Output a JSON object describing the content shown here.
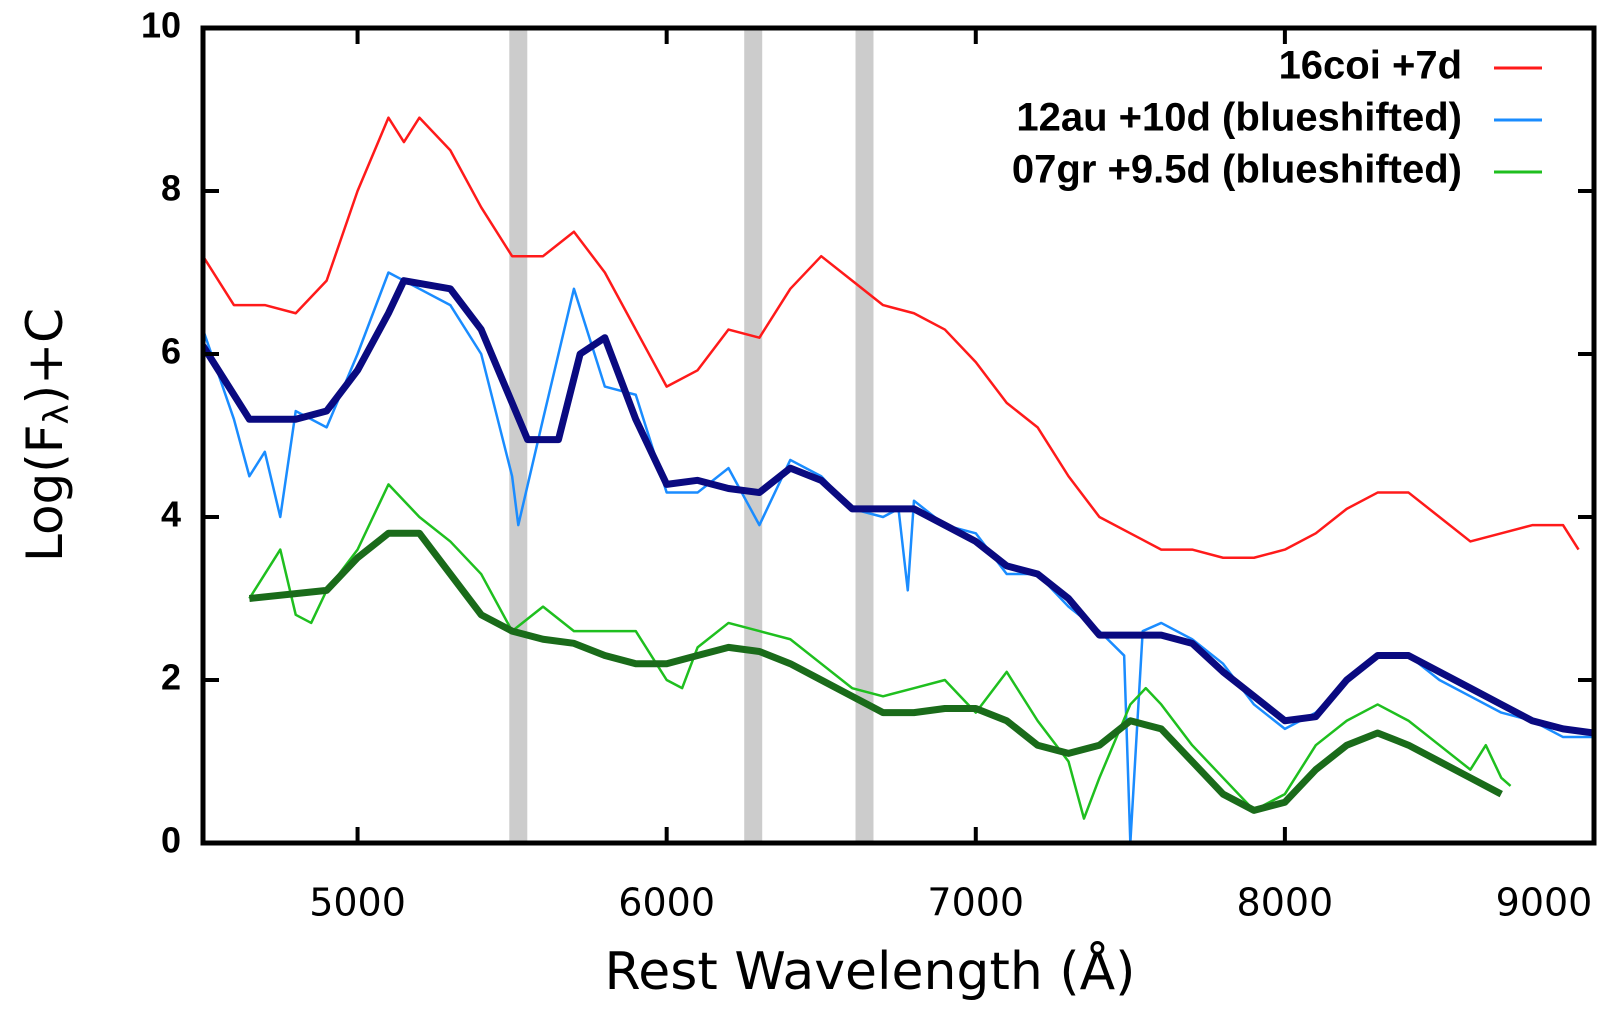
{
  "chart_data": {
    "type": "line",
    "xlabel": "Rest Wavelength (Å)",
    "ylabel": {
      "before": "Log(F",
      "sub": "λ",
      "after": ")+C"
    },
    "xlim": [
      4500,
      9000
    ],
    "xticks": [
      5000,
      6000,
      7000,
      8000,
      9000
    ],
    "ylim": [
      0,
      10
    ],
    "yticks": [
      0,
      2,
      4,
      6,
      8,
      10
    ],
    "legend": "upper right",
    "band_color": "#cccccc",
    "vertical_bands": [
      5520,
      6280,
      6640
    ],
    "series": [
      {
        "name": "16coi +7d",
        "color": "#ff1a1a",
        "width": 2.5,
        "x": [
          4500,
          4600,
          4700,
          4800,
          4900,
          5000,
          5100,
          5150,
          5200,
          5300,
          5400,
          5500,
          5600,
          5700,
          5800,
          5900,
          6000,
          6100,
          6200,
          6300,
          6400,
          6500,
          6600,
          6700,
          6800,
          6900,
          7000,
          7100,
          7200,
          7300,
          7400,
          7500,
          7600,
          7700,
          7800,
          7900,
          8000,
          8100,
          8200,
          8300,
          8400,
          8500,
          8600,
          8700,
          8800,
          8900,
          8950
        ],
        "values": [
          7.2,
          6.6,
          6.6,
          6.5,
          6.9,
          8.0,
          8.9,
          8.6,
          8.9,
          8.5,
          7.8,
          7.2,
          7.2,
          7.5,
          7.0,
          6.3,
          5.6,
          5.8,
          6.3,
          6.2,
          6.8,
          7.2,
          6.9,
          6.6,
          6.5,
          6.3,
          5.9,
          5.4,
          5.1,
          4.5,
          4.0,
          3.8,
          3.6,
          3.6,
          3.5,
          3.5,
          3.6,
          3.8,
          4.1,
          4.3,
          4.3,
          4.0,
          3.7,
          3.8,
          3.9,
          3.9,
          3.6
        ]
      },
      {
        "name": "12au +10d (blueshifted)",
        "color": "#1a8cff",
        "width": 2.5,
        "x": [
          4500,
          4600,
          4650,
          4700,
          4750,
          4800,
          4900,
          5000,
          5100,
          5200,
          5300,
          5400,
          5500,
          5520,
          5600,
          5700,
          5800,
          5900,
          6000,
          6100,
          6200,
          6300,
          6400,
          6500,
          6600,
          6700,
          6750,
          6780,
          6800,
          6900,
          7000,
          7100,
          7200,
          7300,
          7400,
          7480,
          7500,
          7540,
          7600,
          7700,
          7800,
          7900,
          8000,
          8100,
          8200,
          8300,
          8400,
          8500,
          8600,
          8700,
          8800,
          8900,
          9000
        ],
        "values": [
          6.3,
          5.2,
          4.5,
          4.8,
          4.0,
          5.3,
          5.1,
          6.0,
          7.0,
          6.8,
          6.6,
          6.0,
          4.5,
          3.9,
          5.2,
          6.8,
          5.6,
          5.5,
          4.3,
          4.3,
          4.6,
          3.9,
          4.7,
          4.5,
          4.1,
          4.0,
          4.1,
          3.1,
          4.2,
          3.9,
          3.8,
          3.3,
          3.3,
          2.9,
          2.6,
          2.3,
          0.0,
          2.6,
          2.7,
          2.5,
          2.2,
          1.7,
          1.4,
          1.6,
          2.0,
          2.3,
          2.3,
          2.0,
          1.8,
          1.6,
          1.5,
          1.3,
          1.3
        ]
      },
      {
        "name": "07gr +9.5d (blueshifted)",
        "color": "#1fbf1f",
        "width": 2.5,
        "x": [
          4650,
          4700,
          4750,
          4800,
          4850,
          4900,
          5000,
          5100,
          5200,
          5300,
          5400,
          5500,
          5600,
          5700,
          5800,
          5900,
          6000,
          6050,
          6100,
          6200,
          6300,
          6400,
          6500,
          6600,
          6700,
          6800,
          6900,
          7000,
          7100,
          7200,
          7300,
          7350,
          7400,
          7500,
          7550,
          7600,
          7700,
          7800,
          7900,
          8000,
          8100,
          8200,
          8300,
          8400,
          8500,
          8600,
          8650,
          8700,
          8730
        ],
        "values": [
          3.0,
          3.3,
          3.6,
          2.8,
          2.7,
          3.1,
          3.6,
          4.4,
          4.0,
          3.7,
          3.3,
          2.6,
          2.9,
          2.6,
          2.6,
          2.6,
          2.0,
          1.9,
          2.4,
          2.7,
          2.6,
          2.5,
          2.2,
          1.9,
          1.8,
          1.9,
          2.0,
          1.6,
          2.1,
          1.5,
          1.0,
          0.3,
          0.8,
          1.7,
          1.9,
          1.7,
          1.2,
          0.8,
          0.4,
          0.6,
          1.2,
          1.5,
          1.7,
          1.5,
          1.2,
          0.9,
          1.2,
          0.8,
          0.7
        ]
      },
      {
        "color": "#0a0a80",
        "width": 7,
        "x": [
          4500,
          4650,
          4800,
          4900,
          5000,
          5100,
          5150,
          5300,
          5400,
          5550,
          5650,
          5720,
          5800,
          5900,
          6000,
          6100,
          6200,
          6300,
          6400,
          6500,
          6600,
          6700,
          6800,
          6900,
          7000,
          7100,
          7200,
          7300,
          7400,
          7500,
          7600,
          7700,
          7800,
          7900,
          8000,
          8100,
          8200,
          8300,
          8400,
          8500,
          8600,
          8700,
          8800,
          8900,
          9000
        ],
        "values": [
          6.1,
          5.2,
          5.2,
          5.3,
          5.8,
          6.5,
          6.9,
          6.8,
          6.3,
          4.95,
          4.95,
          6.0,
          6.2,
          5.2,
          4.4,
          4.45,
          4.35,
          4.3,
          4.6,
          4.45,
          4.1,
          4.1,
          4.1,
          3.9,
          3.7,
          3.4,
          3.3,
          3.0,
          2.55,
          2.55,
          2.55,
          2.45,
          2.1,
          1.8,
          1.5,
          1.55,
          2.0,
          2.3,
          2.3,
          2.1,
          1.9,
          1.7,
          1.5,
          1.4,
          1.35
        ]
      },
      {
        "color": "#1a6b1a",
        "width": 7,
        "x": [
          4650,
          4900,
          5000,
          5100,
          5200,
          5300,
          5400,
          5500,
          5600,
          5700,
          5800,
          5900,
          6000,
          6100,
          6200,
          6300,
          6400,
          6500,
          6600,
          6700,
          6800,
          6900,
          7000,
          7100,
          7200,
          7300,
          7400,
          7500,
          7600,
          7700,
          7800,
          7900,
          8000,
          8100,
          8200,
          8300,
          8400,
          8500,
          8600,
          8700
        ],
        "values": [
          3.0,
          3.1,
          3.5,
          3.8,
          3.8,
          3.3,
          2.8,
          2.6,
          2.5,
          2.45,
          2.3,
          2.2,
          2.2,
          2.3,
          2.4,
          2.35,
          2.2,
          2.0,
          1.8,
          1.6,
          1.6,
          1.65,
          1.65,
          1.5,
          1.2,
          1.1,
          1.2,
          1.5,
          1.4,
          1.0,
          0.6,
          0.4,
          0.5,
          0.9,
          1.2,
          1.35,
          1.2,
          1.0,
          0.8,
          0.6
        ]
      }
    ]
  }
}
